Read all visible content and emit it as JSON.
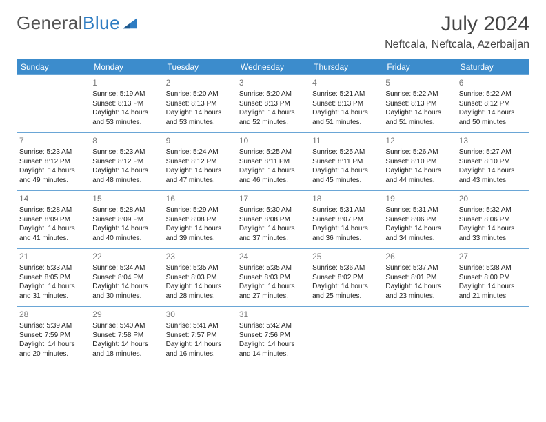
{
  "brand": {
    "part1": "General",
    "part2": "Blue"
  },
  "title": "July 2024",
  "location": "Neftcala, Neftcala, Azerbaijan",
  "colors": {
    "header_bg": "#3c8ccc",
    "header_text": "#ffffff",
    "row_border": "#6aa6d6",
    "daynum_color": "#777777",
    "text_color": "#222222",
    "brand_gray": "#555555",
    "brand_blue": "#2e7cc2"
  },
  "day_headers": [
    "Sunday",
    "Monday",
    "Tuesday",
    "Wednesday",
    "Thursday",
    "Friday",
    "Saturday"
  ],
  "weeks": [
    [
      null,
      {
        "n": "1",
        "sr": "Sunrise: 5:19 AM",
        "ss": "Sunset: 8:13 PM",
        "dl": "Daylight: 14 hours and 53 minutes."
      },
      {
        "n": "2",
        "sr": "Sunrise: 5:20 AM",
        "ss": "Sunset: 8:13 PM",
        "dl": "Daylight: 14 hours and 53 minutes."
      },
      {
        "n": "3",
        "sr": "Sunrise: 5:20 AM",
        "ss": "Sunset: 8:13 PM",
        "dl": "Daylight: 14 hours and 52 minutes."
      },
      {
        "n": "4",
        "sr": "Sunrise: 5:21 AM",
        "ss": "Sunset: 8:13 PM",
        "dl": "Daylight: 14 hours and 51 minutes."
      },
      {
        "n": "5",
        "sr": "Sunrise: 5:22 AM",
        "ss": "Sunset: 8:13 PM",
        "dl": "Daylight: 14 hours and 51 minutes."
      },
      {
        "n": "6",
        "sr": "Sunrise: 5:22 AM",
        "ss": "Sunset: 8:12 PM",
        "dl": "Daylight: 14 hours and 50 minutes."
      }
    ],
    [
      {
        "n": "7",
        "sr": "Sunrise: 5:23 AM",
        "ss": "Sunset: 8:12 PM",
        "dl": "Daylight: 14 hours and 49 minutes."
      },
      {
        "n": "8",
        "sr": "Sunrise: 5:23 AM",
        "ss": "Sunset: 8:12 PM",
        "dl": "Daylight: 14 hours and 48 minutes."
      },
      {
        "n": "9",
        "sr": "Sunrise: 5:24 AM",
        "ss": "Sunset: 8:12 PM",
        "dl": "Daylight: 14 hours and 47 minutes."
      },
      {
        "n": "10",
        "sr": "Sunrise: 5:25 AM",
        "ss": "Sunset: 8:11 PM",
        "dl": "Daylight: 14 hours and 46 minutes."
      },
      {
        "n": "11",
        "sr": "Sunrise: 5:25 AM",
        "ss": "Sunset: 8:11 PM",
        "dl": "Daylight: 14 hours and 45 minutes."
      },
      {
        "n": "12",
        "sr": "Sunrise: 5:26 AM",
        "ss": "Sunset: 8:10 PM",
        "dl": "Daylight: 14 hours and 44 minutes."
      },
      {
        "n": "13",
        "sr": "Sunrise: 5:27 AM",
        "ss": "Sunset: 8:10 PM",
        "dl": "Daylight: 14 hours and 43 minutes."
      }
    ],
    [
      {
        "n": "14",
        "sr": "Sunrise: 5:28 AM",
        "ss": "Sunset: 8:09 PM",
        "dl": "Daylight: 14 hours and 41 minutes."
      },
      {
        "n": "15",
        "sr": "Sunrise: 5:28 AM",
        "ss": "Sunset: 8:09 PM",
        "dl": "Daylight: 14 hours and 40 minutes."
      },
      {
        "n": "16",
        "sr": "Sunrise: 5:29 AM",
        "ss": "Sunset: 8:08 PM",
        "dl": "Daylight: 14 hours and 39 minutes."
      },
      {
        "n": "17",
        "sr": "Sunrise: 5:30 AM",
        "ss": "Sunset: 8:08 PM",
        "dl": "Daylight: 14 hours and 37 minutes."
      },
      {
        "n": "18",
        "sr": "Sunrise: 5:31 AM",
        "ss": "Sunset: 8:07 PM",
        "dl": "Daylight: 14 hours and 36 minutes."
      },
      {
        "n": "19",
        "sr": "Sunrise: 5:31 AM",
        "ss": "Sunset: 8:06 PM",
        "dl": "Daylight: 14 hours and 34 minutes."
      },
      {
        "n": "20",
        "sr": "Sunrise: 5:32 AM",
        "ss": "Sunset: 8:06 PM",
        "dl": "Daylight: 14 hours and 33 minutes."
      }
    ],
    [
      {
        "n": "21",
        "sr": "Sunrise: 5:33 AM",
        "ss": "Sunset: 8:05 PM",
        "dl": "Daylight: 14 hours and 31 minutes."
      },
      {
        "n": "22",
        "sr": "Sunrise: 5:34 AM",
        "ss": "Sunset: 8:04 PM",
        "dl": "Daylight: 14 hours and 30 minutes."
      },
      {
        "n": "23",
        "sr": "Sunrise: 5:35 AM",
        "ss": "Sunset: 8:03 PM",
        "dl": "Daylight: 14 hours and 28 minutes."
      },
      {
        "n": "24",
        "sr": "Sunrise: 5:35 AM",
        "ss": "Sunset: 8:03 PM",
        "dl": "Daylight: 14 hours and 27 minutes."
      },
      {
        "n": "25",
        "sr": "Sunrise: 5:36 AM",
        "ss": "Sunset: 8:02 PM",
        "dl": "Daylight: 14 hours and 25 minutes."
      },
      {
        "n": "26",
        "sr": "Sunrise: 5:37 AM",
        "ss": "Sunset: 8:01 PM",
        "dl": "Daylight: 14 hours and 23 minutes."
      },
      {
        "n": "27",
        "sr": "Sunrise: 5:38 AM",
        "ss": "Sunset: 8:00 PM",
        "dl": "Daylight: 14 hours and 21 minutes."
      }
    ],
    [
      {
        "n": "28",
        "sr": "Sunrise: 5:39 AM",
        "ss": "Sunset: 7:59 PM",
        "dl": "Daylight: 14 hours and 20 minutes."
      },
      {
        "n": "29",
        "sr": "Sunrise: 5:40 AM",
        "ss": "Sunset: 7:58 PM",
        "dl": "Daylight: 14 hours and 18 minutes."
      },
      {
        "n": "30",
        "sr": "Sunrise: 5:41 AM",
        "ss": "Sunset: 7:57 PM",
        "dl": "Daylight: 14 hours and 16 minutes."
      },
      {
        "n": "31",
        "sr": "Sunrise: 5:42 AM",
        "ss": "Sunset: 7:56 PM",
        "dl": "Daylight: 14 hours and 14 minutes."
      },
      null,
      null,
      null
    ]
  ]
}
